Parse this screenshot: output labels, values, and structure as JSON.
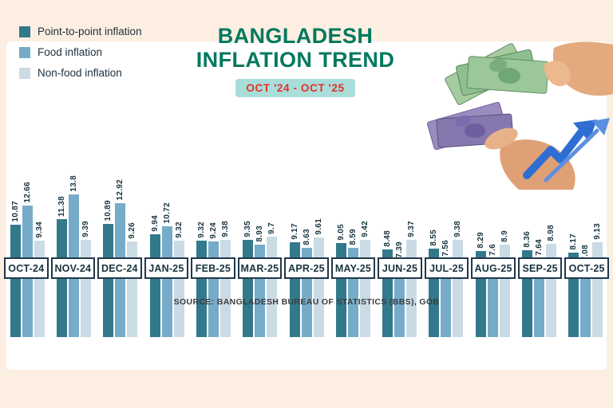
{
  "page": {
    "background": "#fcefe2",
    "panel_background": "#ffffff"
  },
  "legend": [
    {
      "label": "Point-to-point inflation",
      "color": "#33798c"
    },
    {
      "label": "Food inflation",
      "color": "#76acc9"
    },
    {
      "label": "Non-food inflation",
      "color": "#cadbe6"
    }
  ],
  "title": {
    "line1": "BANGLADESH",
    "line2": "INFLATION TREND",
    "badge": "OCT '24 - OCT '25",
    "title_color": "#00795e",
    "badge_bg": "#a9ddda",
    "badge_text_color": "#e0342a"
  },
  "source": "SOURCE: BANGLADESH BUREAU OF STATISTICS (BBS), GOB",
  "chart_data": {
    "type": "bar",
    "title": "BANGLADESH INFLATION TREND",
    "subtitle": "OCT '24 - OCT '25",
    "categories": [
      "OCT-24",
      "NOV-24",
      "DEC-24",
      "JAN-25",
      "FEB-25",
      "MAR-25",
      "APR-25",
      "MAY-25",
      "JUN-25",
      "JUL-25",
      "AUG-25",
      "SEP-25",
      "OCT-25"
    ],
    "series": [
      {
        "name": "Point-to-point inflation",
        "color": "#33798c",
        "values": [
          10.87,
          11.38,
          10.89,
          9.94,
          9.32,
          9.35,
          9.17,
          9.05,
          8.48,
          8.55,
          8.29,
          8.36,
          8.17
        ]
      },
      {
        "name": "Food inflation",
        "color": "#76acc9",
        "values": [
          12.66,
          13.8,
          12.92,
          10.72,
          9.24,
          8.93,
          8.63,
          8.59,
          7.39,
          7.56,
          7.6,
          7.64,
          7.08
        ]
      },
      {
        "name": "Non-food inflation",
        "color": "#cadbe6",
        "values": [
          9.34,
          9.39,
          9.26,
          9.32,
          9.38,
          9.7,
          9.61,
          9.42,
          9.37,
          9.38,
          8.9,
          8.98,
          9.13
        ]
      }
    ],
    "ylim": [
      0,
      14
    ],
    "value_labels": true,
    "value_label_rotation": 90,
    "grid": false,
    "legend_position": "top-left",
    "xlabel": "",
    "ylabel": ""
  }
}
